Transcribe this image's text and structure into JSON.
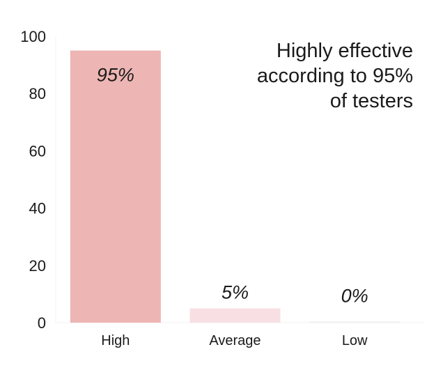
{
  "chart_data": {
    "type": "bar",
    "categories": [
      "High",
      "Average",
      "Low"
    ],
    "values": [
      95,
      5,
      0
    ],
    "data_labels": [
      "95%",
      "5%",
      "0%"
    ],
    "bar_colors": [
      "#edb5b3",
      "#f8dfe4",
      "#eeeeee"
    ],
    "yticks": [
      "0",
      "20",
      "40",
      "60",
      "80",
      "100"
    ],
    "ylim": [
      0,
      100
    ],
    "grid": false,
    "annotation": {
      "lines": [
        "Highly effective",
        "according to 95%",
        "of testers"
      ]
    }
  }
}
